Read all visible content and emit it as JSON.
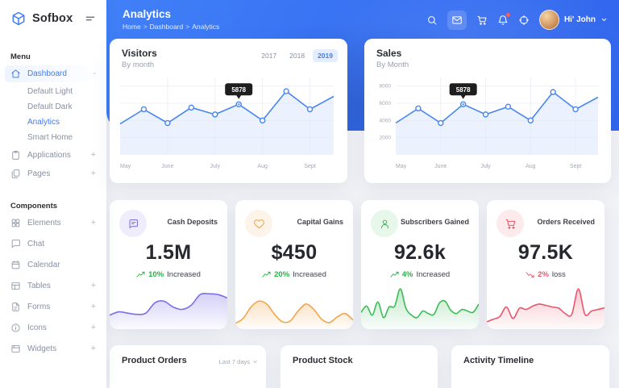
{
  "sidebar": {
    "brand": "Sofbox",
    "menu_label": "Menu",
    "components_label": "Components",
    "items": [
      {
        "label": "Dashboard",
        "icon": "home-icon",
        "state": "active",
        "suffix": "-",
        "children": [
          {
            "label": "Default Light"
          },
          {
            "label": "Default Dark"
          },
          {
            "label": "Analytics",
            "state": "active"
          },
          {
            "label": "Smart Home"
          }
        ]
      },
      {
        "label": "Applications",
        "icon": "clipboard-icon",
        "suffix": "+"
      },
      {
        "label": "Pages",
        "icon": "pages-icon",
        "suffix": "+"
      }
    ],
    "component_items": [
      {
        "label": "Elements",
        "icon": "grid-icon",
        "suffix": "+"
      },
      {
        "label": "Chat",
        "icon": "chat-icon"
      },
      {
        "label": "Calendar",
        "icon": "calendar-icon"
      },
      {
        "label": "Tables",
        "icon": "table-icon",
        "suffix": "+"
      },
      {
        "label": "Forms",
        "icon": "form-icon",
        "suffix": "+"
      },
      {
        "label": "Icons",
        "icon": "info-icon",
        "suffix": "+"
      },
      {
        "label": "Widgets",
        "icon": "widget-icon",
        "suffix": "+"
      }
    ]
  },
  "header": {
    "title": "Analytics",
    "breadcrumb": [
      "Home",
      "Dashboard",
      "Analytics"
    ],
    "user": "Hi' John",
    "actions": [
      {
        "name": "search-icon"
      },
      {
        "name": "mail-icon",
        "boxed": true
      },
      {
        "name": "cart-icon"
      },
      {
        "name": "bell-icon",
        "badge": true
      },
      {
        "name": "target-icon"
      }
    ]
  },
  "chart_data": [
    {
      "id": "visitors",
      "type": "line",
      "title": "Visitors",
      "subtitle": "By month",
      "x_labels": [
        "May",
        "June",
        "July",
        "Aug",
        "Sept"
      ],
      "values": [
        3600,
        5300,
        3700,
        5500,
        4700,
        5878,
        4000,
        7400,
        5300,
        6800
      ],
      "ylim": [
        0,
        9000
      ],
      "y_ticks": [],
      "grid": true,
      "legend": "none",
      "tooltip": {
        "index": 5,
        "label": "5878"
      },
      "tabs": [
        "2017",
        "2018",
        "2019"
      ],
      "active_tab": "2019",
      "line_color": "#4a86f0",
      "area_color": "#dbe7fb"
    },
    {
      "id": "sales",
      "type": "line",
      "title": "Sales",
      "subtitle": "By Month",
      "x_labels": [
        "May",
        "June",
        "July",
        "Aug",
        "Sept"
      ],
      "values": [
        3700,
        5400,
        3700,
        5878,
        4700,
        5600,
        4000,
        7300,
        5300,
        6700
      ],
      "ylim": [
        0,
        9000
      ],
      "y_ticks": [
        8000,
        6000,
        4000,
        2000
      ],
      "grid": true,
      "legend": "none",
      "tooltip": {
        "index": 3,
        "label": "5878"
      },
      "line_color": "#4a86f0",
      "area_color": "#dbe7fb"
    },
    {
      "id": "cash-spark",
      "type": "area",
      "color": "#7a6fe8",
      "values": [
        28,
        36,
        33,
        30,
        33,
        58,
        62,
        48,
        42,
        52,
        78,
        80,
        78,
        70
      ]
    },
    {
      "id": "capital-spark",
      "type": "area",
      "color": "#f2a54a",
      "values": [
        8,
        20,
        48,
        62,
        55,
        30,
        12,
        14,
        38,
        55,
        42,
        18,
        10,
        24,
        32,
        16
      ]
    },
    {
      "id": "subscribers-spark",
      "type": "area",
      "color": "#3bba55",
      "values": [
        35,
        50,
        28,
        60,
        22,
        48,
        50,
        92,
        45,
        28,
        22,
        38,
        32,
        30,
        58,
        62,
        40,
        32,
        42,
        38,
        35,
        55
      ]
    },
    {
      "id": "orders-spark",
      "type": "area",
      "color": "#e8566a",
      "values": [
        12,
        18,
        25,
        48,
        20,
        45,
        42,
        50,
        55,
        52,
        48,
        45,
        32,
        30,
        92,
        30,
        38,
        42,
        46
      ]
    },
    {
      "id": "product-orders-donut",
      "type": "donut",
      "colors": [
        "#f29b38",
        "#2fb344"
      ]
    }
  ],
  "stat_cards": [
    {
      "title": "Cash Deposits",
      "value": "1.5M",
      "delta": "10%",
      "delta_label": "Increased",
      "trend": "up",
      "color": "#7a6fe8",
      "delta_color": "#27b345",
      "icon": "message-icon",
      "spark_id": "cash-spark"
    },
    {
      "title": "Capital Gains",
      "value": "$450",
      "delta": "20%",
      "delta_label": "Increased",
      "trend": "up",
      "color": "#f2a54a",
      "delta_color": "#27b345",
      "icon": "heart-icon",
      "spark_id": "capital-spark"
    },
    {
      "title": "Subscribers Gained",
      "value": "92.6k",
      "delta": "4%",
      "delta_label": "Increased",
      "trend": "up",
      "color": "#3bba55",
      "delta_color": "#27b345",
      "icon": "user-icon",
      "spark_id": "subscribers-spark"
    },
    {
      "title": "Orders Received",
      "value": "97.5K",
      "delta": "2%",
      "delta_label": "loss",
      "trend": "down",
      "color": "#e8566a",
      "delta_color": "#e8566a",
      "icon": "cart-icon",
      "spark_id": "orders-spark"
    }
  ],
  "bottom_cards": [
    {
      "title": "Product Orders",
      "filter": "Last 7 days"
    },
    {
      "title": "Product Stock"
    },
    {
      "title": "Activity Timeline"
    }
  ]
}
